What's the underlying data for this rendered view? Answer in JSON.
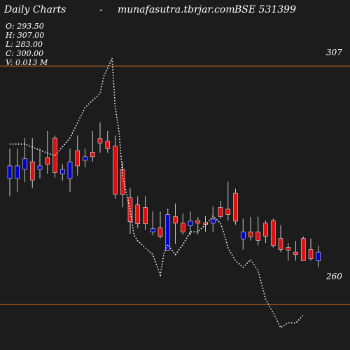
{
  "header": {
    "label": "Daily Charts",
    "dash": "-",
    "site": "munafasutra.tbrjar.com",
    "symbol": "BSE 531399"
  },
  "ohlc": {
    "open": "O: 293.50",
    "high": "H: 307.00",
    "low": "L: 283.00",
    "close": "C: 300.00",
    "volume": "V: 0.013 M"
  },
  "colors": {
    "background": "#1c1c1c",
    "up": "#0000cc",
    "down": "#e01010",
    "wick": "#c8c8c8",
    "level_line": "#e07020",
    "overlay_line": "#ffffff"
  },
  "chart_data": {
    "type": "candlestick",
    "title": "Daily Charts - munafasutra.tbrjar.com BSE 531399",
    "ylim": [
      251,
      320
    ],
    "levels": [
      {
        "label": "307",
        "value": 307
      },
      {
        "label": "260",
        "value": 260
      }
    ],
    "candles": [
      {
        "o": 287.3,
        "h": 290.7,
        "l": 281.3,
        "c": 284.8,
        "color": "blue"
      },
      {
        "o": 287.3,
        "h": 290.7,
        "l": 282.2,
        "c": 284.8,
        "color": "blue"
      },
      {
        "o": 288.7,
        "h": 292.8,
        "l": 284.1,
        "c": 286.6,
        "color": "blue"
      },
      {
        "o": 284.5,
        "h": 292.8,
        "l": 282.9,
        "c": 288.1,
        "color": "red"
      },
      {
        "o": 287.3,
        "h": 290.7,
        "l": 284.8,
        "c": 286.6,
        "color": "blue"
      },
      {
        "o": 287.6,
        "h": 294.2,
        "l": 285.7,
        "c": 288.9,
        "color": "red"
      },
      {
        "o": 286.0,
        "h": 293.3,
        "l": 285.0,
        "c": 292.8,
        "color": "red"
      },
      {
        "o": 285.7,
        "h": 287.6,
        "l": 284.4,
        "c": 286.6,
        "color": "blue"
      },
      {
        "o": 284.8,
        "h": 290.7,
        "l": 282.2,
        "c": 288.1,
        "color": "blue"
      },
      {
        "o": 287.3,
        "h": 293.3,
        "l": 285.4,
        "c": 290.3,
        "color": "red"
      },
      {
        "o": 288.4,
        "h": 290.7,
        "l": 287.0,
        "c": 289.1,
        "color": "blue"
      },
      {
        "o": 289.1,
        "h": 294.2,
        "l": 288.1,
        "c": 290.0,
        "color": "red"
      },
      {
        "o": 292.7,
        "h": 295.9,
        "l": 289.9,
        "c": 291.8,
        "color": "red"
      },
      {
        "o": 292.2,
        "h": 294.2,
        "l": 289.9,
        "c": 290.7,
        "color": "red"
      },
      {
        "o": 291.2,
        "h": 293.3,
        "l": 280.8,
        "c": 281.7,
        "color": "red"
      },
      {
        "o": 286.6,
        "h": 288.1,
        "l": 279.1,
        "c": 281.7,
        "color": "red"
      },
      {
        "o": 281.0,
        "h": 282.9,
        "l": 273.9,
        "c": 276.3,
        "color": "red"
      },
      {
        "o": 279.6,
        "h": 281.3,
        "l": 275.0,
        "c": 275.9,
        "color": "red"
      },
      {
        "o": 279.1,
        "h": 281.3,
        "l": 274.7,
        "c": 275.9,
        "color": "red"
      },
      {
        "o": 274.9,
        "h": 278.3,
        "l": 273.6,
        "c": 274.3,
        "color": "blue"
      },
      {
        "o": 275.1,
        "h": 278.3,
        "l": 273.0,
        "c": 273.4,
        "color": "red"
      },
      {
        "o": 277.7,
        "h": 278.9,
        "l": 270.7,
        "c": 270.7,
        "color": "blue"
      },
      {
        "o": 277.3,
        "h": 279.9,
        "l": 271.9,
        "c": 276.0,
        "color": "red"
      },
      {
        "o": 276.0,
        "h": 277.9,
        "l": 273.8,
        "c": 274.3,
        "color": "red"
      },
      {
        "o": 275.5,
        "h": 278.3,
        "l": 273.6,
        "c": 276.4,
        "color": "blue"
      },
      {
        "o": 276.5,
        "h": 277.2,
        "l": 273.8,
        "c": 276.0,
        "color": "red"
      },
      {
        "o": 276.0,
        "h": 277.4,
        "l": 274.3,
        "c": 275.8,
        "color": "red"
      },
      {
        "o": 276.8,
        "h": 279.3,
        "l": 274.3,
        "c": 276.0,
        "color": "blue"
      },
      {
        "o": 279.1,
        "h": 280.4,
        "l": 276.9,
        "c": 277.3,
        "color": "red"
      },
      {
        "o": 278.8,
        "h": 284.2,
        "l": 276.5,
        "c": 277.7,
        "color": "red"
      },
      {
        "o": 281.9,
        "h": 282.8,
        "l": 275.7,
        "c": 276.4,
        "color": "red"
      },
      {
        "o": 274.3,
        "h": 276.9,
        "l": 270.8,
        "c": 272.9,
        "color": "blue"
      },
      {
        "o": 274.3,
        "h": 277.2,
        "l": 272.6,
        "c": 273.3,
        "color": "red"
      },
      {
        "o": 274.3,
        "h": 277.3,
        "l": 271.6,
        "c": 272.6,
        "color": "red"
      },
      {
        "o": 276.0,
        "h": 276.5,
        "l": 272.1,
        "c": 273.4,
        "color": "red"
      },
      {
        "o": 276.5,
        "h": 276.9,
        "l": 271.2,
        "c": 271.6,
        "color": "red"
      },
      {
        "o": 273.0,
        "h": 275.6,
        "l": 270.3,
        "c": 270.8,
        "color": "red"
      },
      {
        "o": 271.2,
        "h": 272.1,
        "l": 268.6,
        "c": 270.7,
        "color": "red"
      },
      {
        "o": 270.3,
        "h": 272.5,
        "l": 268.6,
        "c": 269.8,
        "color": "red"
      },
      {
        "o": 273.0,
        "h": 273.4,
        "l": 268.6,
        "c": 268.6,
        "color": "red"
      },
      {
        "o": 270.8,
        "h": 273.0,
        "l": 268.6,
        "c": 269.0,
        "color": "red"
      },
      {
        "o": 268.6,
        "h": 271.6,
        "l": 267.3,
        "c": 270.3,
        "color": "blue"
      }
    ],
    "overlay_line": [
      [
        0,
        291.6
      ],
      [
        2,
        291.6
      ],
      [
        4,
        290.4
      ],
      [
        6,
        289.3
      ],
      [
        8,
        292.8
      ],
      [
        10,
        298.8
      ],
      [
        12,
        301.6
      ],
      [
        12.5,
        305
      ],
      [
        13.6,
        308.5
      ],
      [
        14,
        299.0
      ],
      [
        14.5,
        294.2
      ],
      [
        15,
        285.2
      ],
      [
        16,
        278.6
      ],
      [
        16.5,
        273.7
      ],
      [
        17,
        272.5
      ],
      [
        19,
        269.8
      ],
      [
        20,
        265.8
      ],
      [
        20.5,
        270.1
      ],
      [
        21,
        271.8
      ],
      [
        22,
        269.8
      ],
      [
        23,
        271.8
      ],
      [
        24,
        274.3
      ],
      [
        25,
        274.3
      ],
      [
        26,
        275.7
      ],
      [
        27,
        277.4
      ],
      [
        28,
        276.0
      ],
      [
        28.5,
        273.8
      ],
      [
        29,
        271.1
      ],
      [
        30,
        268.6
      ],
      [
        31,
        267.3
      ],
      [
        32,
        268.8
      ],
      [
        33,
        266.6
      ],
      [
        34,
        261.0
      ],
      [
        35,
        258.3
      ],
      [
        36,
        255.4
      ],
      [
        37,
        256.4
      ],
      [
        38,
        256.3
      ],
      [
        39,
        257.9
      ]
    ]
  }
}
